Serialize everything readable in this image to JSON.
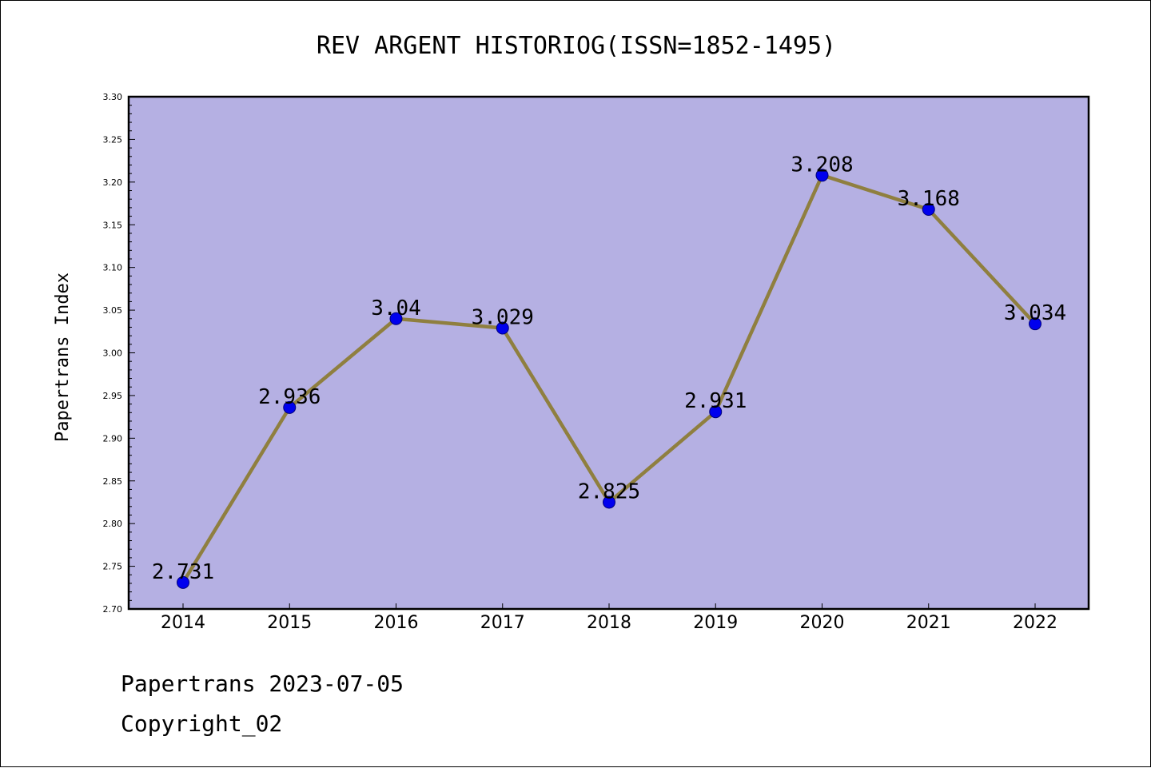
{
  "chart_data": {
    "type": "line",
    "title": "REV ARGENT HISTORIOG(ISSN=1852-1495)",
    "ylabel": "Papertrans Index",
    "xlabel": "",
    "categories": [
      "2014",
      "2015",
      "2016",
      "2017",
      "2018",
      "2019",
      "2020",
      "2021",
      "2022"
    ],
    "values": [
      2.731,
      2.936,
      3.04,
      3.029,
      2.825,
      2.931,
      3.208,
      3.168,
      3.034
    ],
    "data_labels": [
      "2.731",
      "2.936",
      "3.04",
      "3.029",
      "2.825",
      "2.931",
      "3.208",
      "3.168",
      "3.034"
    ],
    "ylim": [
      2.7,
      3.3
    ],
    "yticks": [
      "2.70",
      "2.75",
      "2.80",
      "2.85",
      "2.90",
      "2.95",
      "3.00",
      "3.05",
      "3.10",
      "3.15",
      "3.20",
      "3.25",
      "3.30"
    ],
    "grid": false,
    "colors": {
      "plot_background": "#b5b0e3",
      "line": "#8f7f3f",
      "marker": "#0000ee"
    }
  },
  "footer": {
    "line1": "Papertrans 2023-07-05",
    "line2": "Copyright_02"
  }
}
